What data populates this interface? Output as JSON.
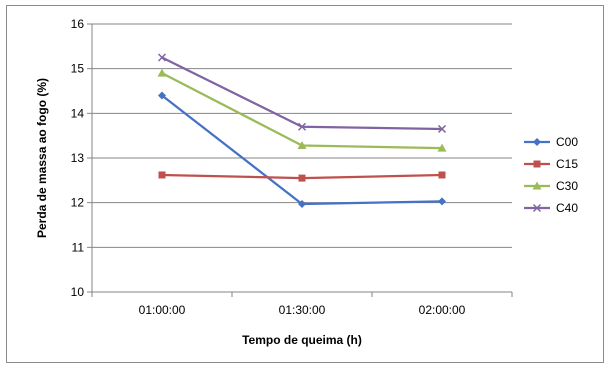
{
  "chart_data": {
    "type": "line",
    "title": "",
    "xlabel": "Tempo de queima (h)",
    "ylabel": "Perda de massa ao fogo (%)",
    "categories": [
      "01:00:00",
      "01:30:00",
      "02:00:00"
    ],
    "ylim": [
      10,
      16
    ],
    "yticks": [
      "10",
      "11",
      "12",
      "13",
      "14",
      "15",
      "16"
    ],
    "grid": "horizontal",
    "legend_position": "right",
    "series": [
      {
        "name": "C00",
        "values": [
          14.4,
          11.97,
          12.03
        ],
        "color": "#4472C4",
        "marker": "diamond"
      },
      {
        "name": "C15",
        "values": [
          12.62,
          12.55,
          12.62
        ],
        "color": "#C0504D",
        "marker": "square"
      },
      {
        "name": "C30",
        "values": [
          14.9,
          13.28,
          13.22
        ],
        "color": "#9BBB59",
        "marker": "triangle"
      },
      {
        "name": "C40",
        "values": [
          15.25,
          13.7,
          13.65
        ],
        "color": "#8064A2",
        "marker": "x"
      }
    ]
  }
}
